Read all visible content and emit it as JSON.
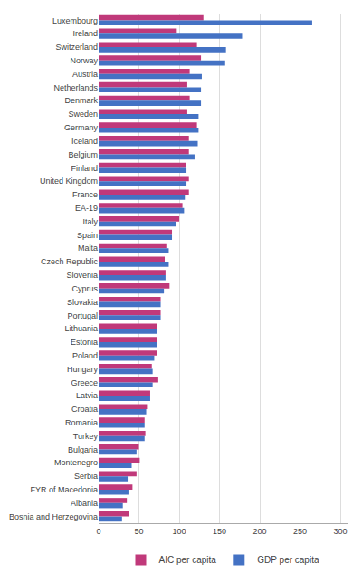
{
  "chart_data": {
    "type": "bar",
    "orientation": "horizontal",
    "categories": [
      "Luxembourg",
      "Ireland",
      "Switzerland",
      "Norway",
      "Austria",
      "Netherlands",
      "Denmark",
      "Sweden",
      "Germany",
      "Iceland",
      "Belgium",
      "Finland",
      "United Kingdom",
      "France",
      "EA-19",
      "Italy",
      "Spain",
      "Malta",
      "Czech Republic",
      "Slovenia",
      "Cyprus",
      "Slovakia",
      "Portugal",
      "Lithuania",
      "Estonia",
      "Poland",
      "Hungary",
      "Greece",
      "Latvia",
      "Croatia",
      "Romania",
      "Turkey",
      "Bulgaria",
      "Montenegro",
      "Serbia",
      "FYR of Macedonia",
      "Albania",
      "Bosnia and Herzegovina"
    ],
    "series": [
      {
        "name": "AIC per capita",
        "color": "#c0397a",
        "values": [
          130,
          97,
          122,
          127,
          113,
          110,
          113,
          110,
          122,
          112,
          112,
          108,
          112,
          112,
          104,
          100,
          91,
          84,
          82,
          83,
          88,
          77,
          77,
          73,
          72,
          72,
          66,
          74,
          64,
          60,
          57,
          58,
          50,
          51,
          47,
          42,
          35,
          38
        ]
      },
      {
        "name": "GDP per capita",
        "color": "#4472c4",
        "values": [
          265,
          178,
          158,
          157,
          128,
          127,
          127,
          124,
          124,
          123,
          119,
          109,
          109,
          107,
          106,
          96,
          91,
          87,
          87,
          83,
          81,
          77,
          77,
          73,
          72,
          69,
          67,
          67,
          64,
          59,
          57,
          57,
          47,
          41,
          36,
          37,
          30,
          29
        ]
      }
    ],
    "xlim": [
      0,
      310
    ],
    "xticks": [
      0,
      50,
      100,
      150,
      200,
      250,
      300
    ],
    "grid": true,
    "legend": "bottom"
  }
}
